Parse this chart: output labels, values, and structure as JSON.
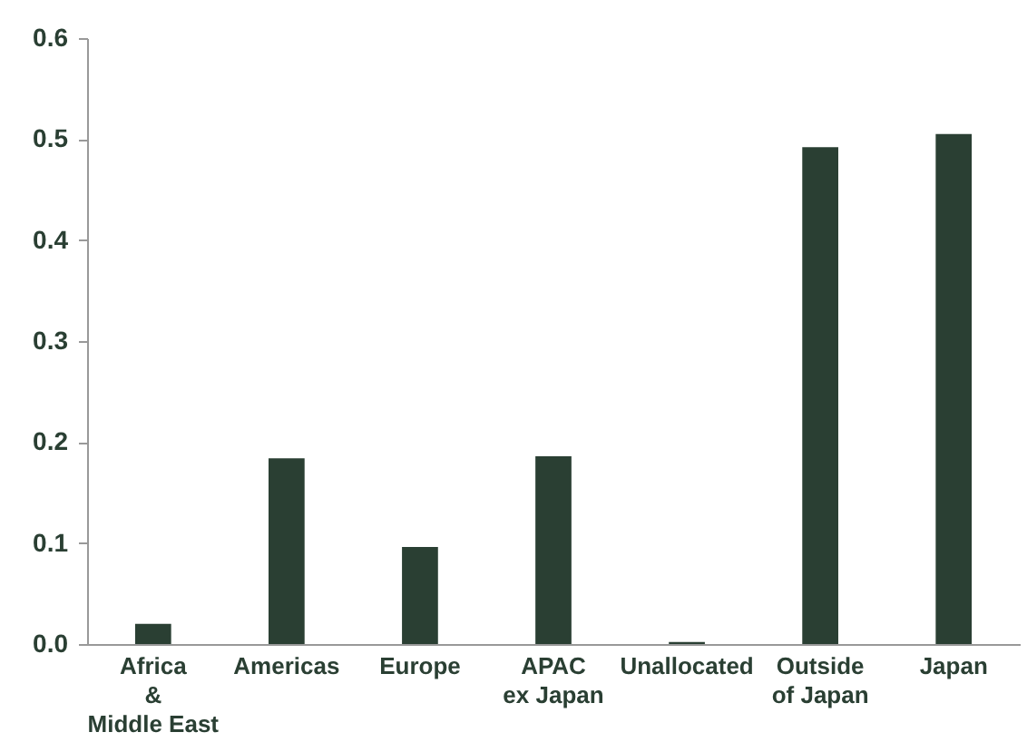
{
  "chart_data": {
    "type": "bar",
    "categories": [
      "Africa\n&\nMiddle East",
      "Americas",
      "Europe",
      "APAC\nex Japan",
      "Unallocated",
      "Outside\nof Japan",
      "Japan"
    ],
    "values": [
      0.02,
      0.184,
      0.096,
      0.186,
      0.002,
      0.492,
      0.505
    ],
    "color": "#2a3f33",
    "ylim": [
      0,
      0.6
    ],
    "yticks": [
      {
        "value": 0,
        "label": "0.0"
      },
      0.1,
      0.2,
      0.3,
      0.4,
      0.5,
      0.6
    ],
    "grid": false
  }
}
